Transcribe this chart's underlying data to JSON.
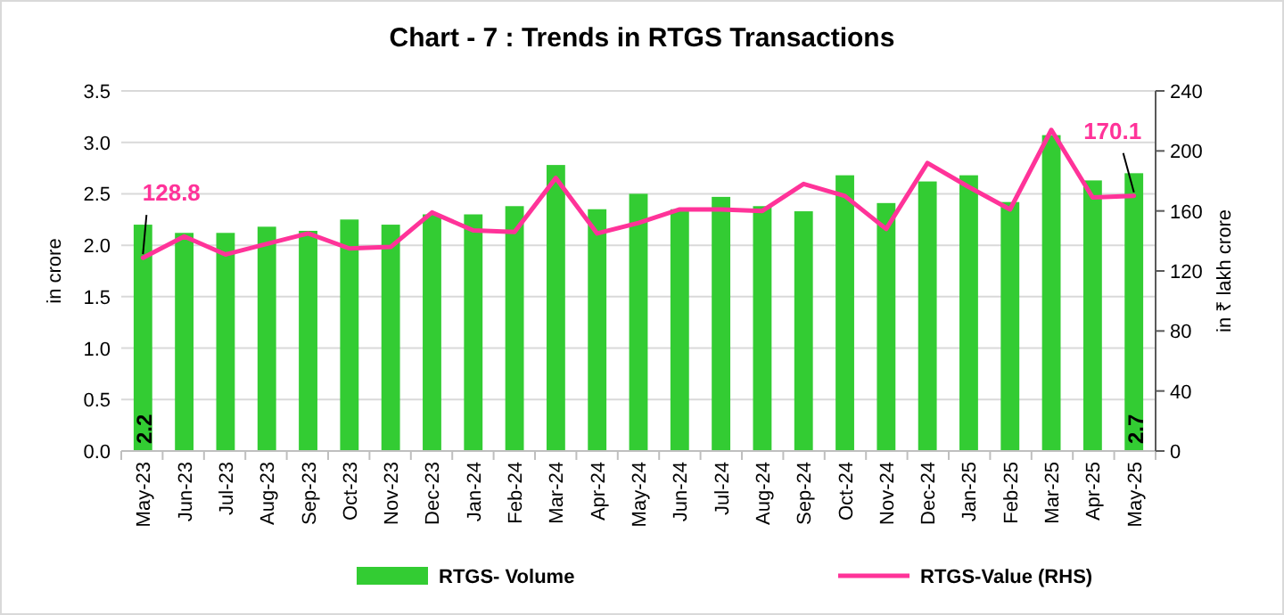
{
  "chart_data": {
    "type": "bar",
    "title": "Chart - 7 : Trends in RTGS Transactions",
    "ylabel": "in crore",
    "y2label": "in ₹ lakh crore",
    "categories": [
      "May-23",
      "Jun-23",
      "Jul-23",
      "Aug-23",
      "Sep-23",
      "Oct-23",
      "Nov-23",
      "Dec-23",
      "Jan-24",
      "Feb-24",
      "Mar-24",
      "Apr-24",
      "May-24",
      "Jun-24",
      "Jul-24",
      "Aug-24",
      "Sep-24",
      "Oct-24",
      "Nov-24",
      "Dec-24",
      "Jan-25",
      "Feb-25",
      "Mar-25",
      "Apr-25",
      "May-25"
    ],
    "series": [
      {
        "name": "RTGS- Volume",
        "color": "#33cc33",
        "values": [
          2.2,
          2.12,
          2.12,
          2.18,
          2.14,
          2.25,
          2.2,
          2.3,
          2.3,
          2.38,
          2.78,
          2.35,
          2.5,
          2.35,
          2.47,
          2.38,
          2.33,
          2.68,
          2.41,
          2.62,
          2.68,
          2.42,
          3.07,
          2.63,
          2.7
        ],
        "value_labels": [
          "2.2",
          null,
          null,
          null,
          null,
          null,
          null,
          null,
          null,
          null,
          null,
          null,
          null,
          null,
          null,
          null,
          null,
          null,
          null,
          null,
          null,
          null,
          null,
          null,
          "2.7"
        ]
      },
      {
        "name": "RTGS-Value (RHS)",
        "type": "line",
        "axis": "y2",
        "color": "#ff3399",
        "values": [
          128.8,
          143,
          131,
          138,
          145,
          135,
          136,
          159,
          147,
          146,
          182,
          145,
          152,
          161,
          161,
          160,
          178,
          170,
          148,
          192,
          176,
          161,
          214,
          169,
          170.1
        ],
        "value_labels": [
          "128.8",
          null,
          null,
          null,
          null,
          null,
          null,
          null,
          null,
          null,
          null,
          null,
          null,
          null,
          null,
          null,
          null,
          null,
          null,
          null,
          null,
          null,
          null,
          null,
          "170.1"
        ]
      }
    ],
    "ylim": [
      0,
      3.5
    ],
    "yticks": [
      {
        "value": 0,
        "label": "0.0"
      },
      {
        "value": 0.5,
        "label": "0.5"
      },
      {
        "value": 1,
        "label": "1.0"
      },
      {
        "value": 1.5,
        "label": "1.5"
      },
      {
        "value": 2,
        "label": "2.0"
      },
      {
        "value": 2.5,
        "label": "2.5"
      },
      {
        "value": 3,
        "label": "3.0"
      },
      {
        "value": 3.5,
        "label": "3.5"
      }
    ],
    "y2lim": [
      0,
      240
    ],
    "y2ticks": [
      0,
      40,
      80,
      120,
      160,
      200,
      240
    ],
    "grid": "y",
    "legend": "bottom"
  }
}
